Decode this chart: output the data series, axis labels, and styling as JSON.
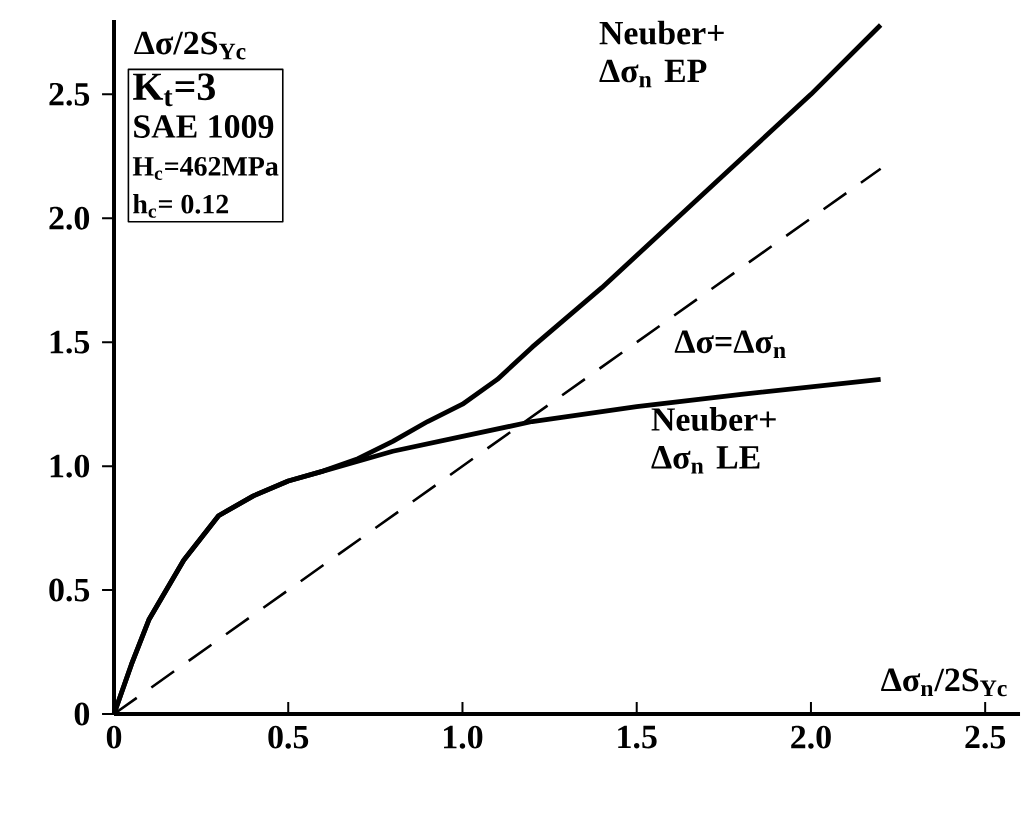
{
  "chart_data": {
    "type": "line",
    "xlabel": "Δσ$_{n}$/2S$_{Yc}$",
    "ylabel": "Δσ/2S$_{Yc}$",
    "xlim": [
      0,
      2.6
    ],
    "ylim": [
      0,
      2.8
    ],
    "xticks": [
      0,
      0.5,
      {
        "value": 1,
        "label": "1.0"
      },
      1.5,
      {
        "value": 2,
        "label": "2.0"
      },
      2.5
    ],
    "yticks": [
      0,
      0.5,
      {
        "value": 1,
        "label": "1.0"
      },
      1.5,
      {
        "value": 2,
        "label": "2.0"
      },
      2.5
    ],
    "grid": false,
    "legend": false,
    "annotations": [
      "K$_{t}$=3",
      "SAE 1009",
      "H$_{c}$=462MPa",
      "h$_{c}$= 0.12"
    ],
    "series": [
      {
        "name": "Neuber+ Δσ$_{n}$ EP",
        "color": "#000000",
        "line_style": "solid",
        "x": [
          0,
          0.05,
          0.1,
          0.2,
          0.3,
          0.4,
          0.5,
          0.6,
          0.7,
          0.8,
          0.9,
          1.0,
          1.1,
          1.2,
          1.4,
          1.6,
          1.8,
          2.0,
          2.2
        ],
        "values": [
          0,
          0.2,
          0.38,
          0.62,
          0.8,
          0.88,
          0.94,
          0.98,
          1.03,
          1.1,
          1.18,
          1.25,
          1.35,
          1.48,
          1.72,
          1.98,
          2.24,
          2.5,
          2.78
        ]
      },
      {
        "name": "Δσ=Δσ$_{n}$",
        "color": "#000000",
        "line_style": "dashed",
        "x": [
          0,
          2.2
        ],
        "values": [
          0,
          2.2
        ]
      },
      {
        "name": "Neuber+ Δσ$_{n}$ LE",
        "color": "#000000",
        "line_style": "solid",
        "x": [
          0,
          0.05,
          0.1,
          0.2,
          0.3,
          0.4,
          0.5,
          0.6,
          0.7,
          0.8,
          1.0,
          1.2,
          1.5,
          1.8,
          2.0,
          2.2
        ],
        "values": [
          0,
          0.2,
          0.38,
          0.62,
          0.8,
          0.88,
          0.94,
          0.98,
          1.02,
          1.06,
          1.12,
          1.18,
          1.24,
          1.29,
          1.32,
          1.35
        ]
      }
    ]
  }
}
